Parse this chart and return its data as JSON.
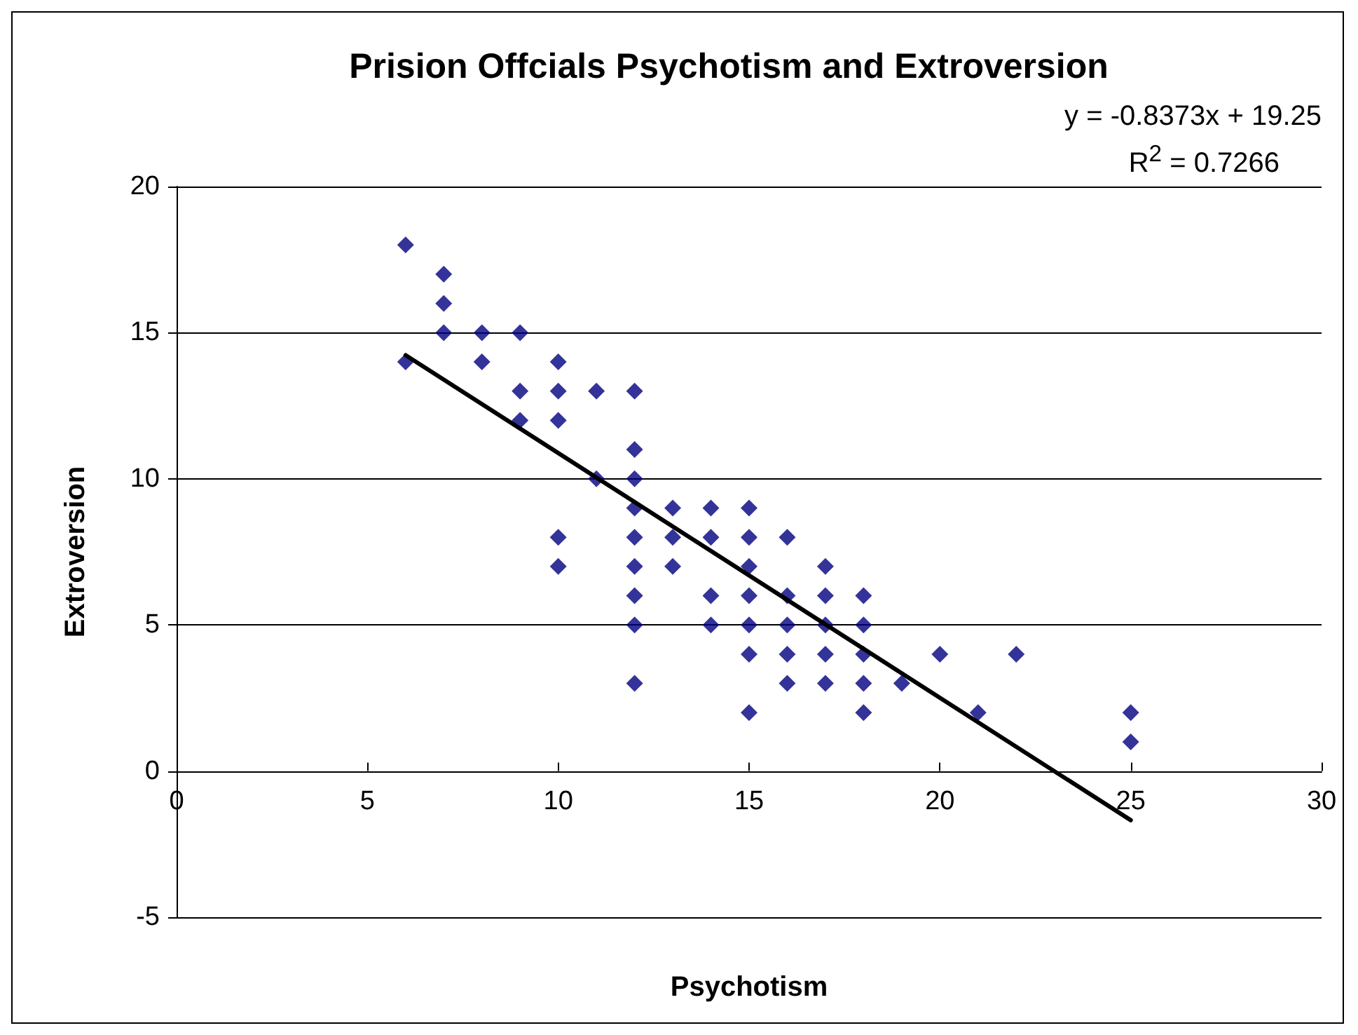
{
  "chart_data": {
    "type": "scatter",
    "title": "Prision Offcials Psychotism and Extroversion",
    "xlabel": "Psychotism",
    "ylabel": "Extroversion",
    "annotations": [
      "y = -0.8373x + 19.25",
      "R$^{2}$ = 0.7266"
    ],
    "xlim": [
      0,
      30
    ],
    "xticks": [
      0,
      5,
      10,
      15,
      20,
      25,
      30
    ],
    "ylim": [
      -5,
      20
    ],
    "yticks": [
      -5,
      0,
      5,
      10,
      15,
      20
    ],
    "grid": "y",
    "marker": "diamond",
    "series": [
      {
        "type": "scatter",
        "color": "#000080",
        "x": [
          6,
          6,
          7,
          7,
          7,
          8,
          8,
          9,
          9,
          9,
          10,
          10,
          10,
          10,
          10,
          11,
          11,
          12,
          12,
          12,
          12,
          12,
          12,
          12,
          12,
          12,
          13,
          13,
          13,
          14,
          14,
          14,
          14,
          15,
          15,
          15,
          15,
          15,
          15,
          15,
          16,
          16,
          16,
          16,
          16,
          17,
          17,
          17,
          17,
          17,
          18,
          18,
          18,
          18,
          18,
          19,
          20,
          21,
          22,
          25,
          25
        ],
        "values": [
          18,
          14,
          17,
          16,
          15,
          15,
          14,
          15,
          13,
          12,
          14,
          13,
          12,
          8,
          7,
          13,
          10,
          13,
          11,
          10,
          9,
          8,
          7,
          6,
          5,
          3,
          9,
          8,
          7,
          9,
          8,
          6,
          5,
          9,
          8,
          7,
          6,
          5,
          4,
          2,
          8,
          6,
          5,
          4,
          3,
          7,
          6,
          5,
          4,
          3,
          6,
          5,
          4,
          3,
          2,
          3,
          4,
          2,
          4,
          2,
          1
        ]
      },
      {
        "type": "line",
        "color": "#000000",
        "marker": "none",
        "line_style": "solid",
        "x": [
          6,
          25
        ],
        "values": [
          14.23,
          -1.68
        ]
      }
    ]
  }
}
